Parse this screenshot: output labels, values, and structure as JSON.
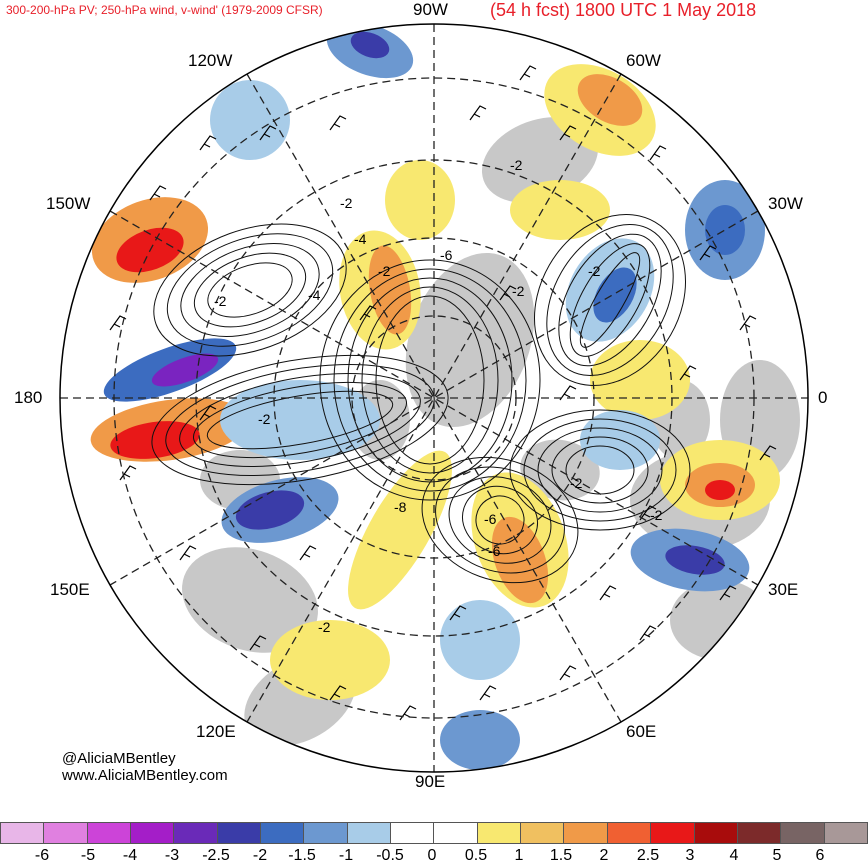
{
  "header": {
    "title_left": "300-200-hPa PV; 250-hPa wind, v-wind' (1979-2009 CFSR)",
    "title_right": "(54 h fcst) 1800 UTC 1 May 2018"
  },
  "longitude_labels": {
    "n90w": "90W",
    "n60w": "60W",
    "n30w": "30W",
    "zero": "0",
    "n30e": "30E",
    "n60e": "60E",
    "n90e": "90E",
    "n120e": "120E",
    "n150e": "150E",
    "n180": "180",
    "n150w": "150W",
    "n120w": "120W"
  },
  "contour_labels": [
    "-2",
    "-2",
    "-2",
    "-4",
    "-6",
    "-2",
    "-2",
    "-2",
    "-6",
    "-2",
    "-8",
    "-2",
    "-2",
    "-2",
    "-6",
    "-4"
  ],
  "credit": {
    "handle": "@AliciaMBentley",
    "website": "www.AliciaMBentley.com"
  },
  "colorbar": {
    "colors": [
      "#e8b6e8",
      "#e080e0",
      "#cc44d8",
      "#a41ec8",
      "#6a2ab8",
      "#3a3ca8",
      "#3c6cc0",
      "#6c98d0",
      "#a8cce8",
      "#ffffff",
      "#ffffff",
      "#f8e870",
      "#f0c060",
      "#f09a48",
      "#f06032",
      "#e81818",
      "#a80c0c",
      "#7c2a2a",
      "#786464",
      "#a89898"
    ],
    "labels": [
      "-6",
      "-5",
      "-4",
      "-3",
      "-2.5",
      "-2",
      "-1.5",
      "-1",
      "-0.5",
      "0",
      "0.5",
      "1",
      "1.5",
      "2",
      "2.5",
      "3",
      "4",
      "5",
      "6"
    ],
    "label_x": [
      42,
      88,
      130,
      172,
      216,
      260,
      302,
      346,
      390,
      432,
      476,
      519,
      561,
      604,
      648,
      690,
      734,
      777,
      820
    ]
  },
  "map_colors": {
    "land": "#c8c8c8",
    "positive_light": "#f8e870",
    "positive_mid": "#f0c060",
    "positive_orange": "#f09a48",
    "positive_red": "#e81818",
    "negative_light": "#a8cce8",
    "negative_mid": "#6c98d0",
    "negative_blue": "#3c6cc0",
    "negative_dark": "#3a3ca8",
    "negative_purple": "#7a24c0",
    "contour": "#111111",
    "grid": "#222222"
  }
}
